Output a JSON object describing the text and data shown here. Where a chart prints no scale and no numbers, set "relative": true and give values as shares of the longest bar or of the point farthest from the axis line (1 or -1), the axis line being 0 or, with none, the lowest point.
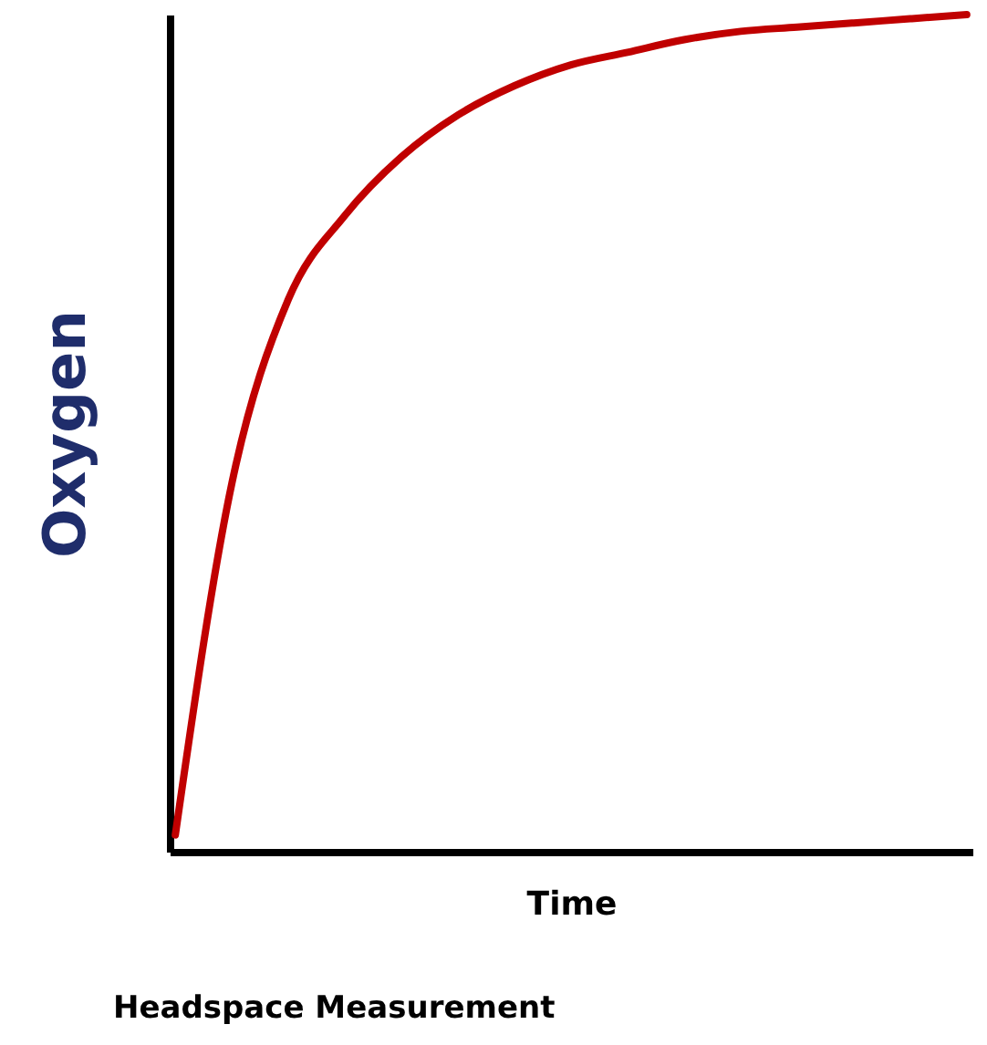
{
  "chart_data": {
    "type": "line",
    "title": "Headspace Measurement",
    "xlabel": "Time",
    "ylabel": "Oxygen",
    "relative": true,
    "categories": [
      null,
      null,
      null,
      null,
      null,
      null,
      null,
      null,
      null,
      null,
      null,
      null,
      null,
      null,
      null
    ],
    "series": [
      {
        "color": "#c00000",
        "values": [
          0.02,
          0.44,
          0.66,
          0.76,
          0.83,
          0.88,
          0.915,
          0.94,
          0.955,
          0.97,
          0.98,
          0.985,
          0.99,
          0.995,
          1.0
        ]
      }
    ],
    "grid": false,
    "marker": "none",
    "line_style": "solid"
  }
}
